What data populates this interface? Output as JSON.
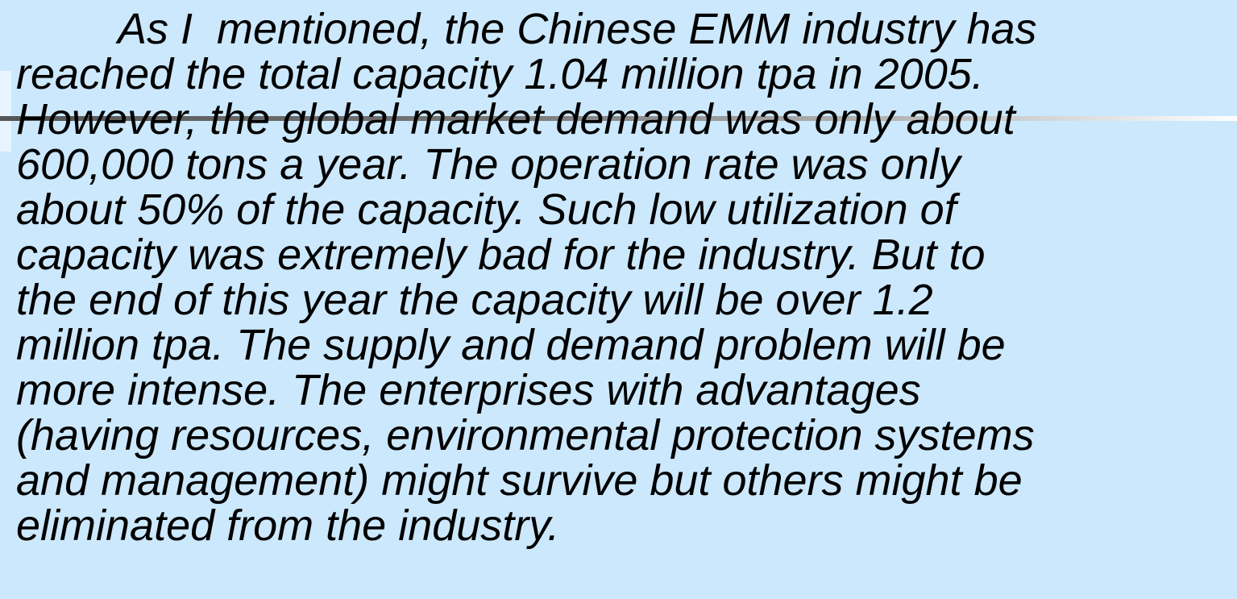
{
  "slide": {
    "lines": [
      "As I  mentioned, the Chinese EMM industry has",
      "reached the total capacity 1.04 million tpa in 2005.",
      "However, the global market demand was only about",
      "600,000 tons a year. The operation rate was only",
      "about 50% of the capacity. Such low utilization of",
      "capacity was extremely bad for the industry. But to",
      "the end of this year the capacity will be over 1.2",
      "million tpa. The supply and demand problem will be",
      "more intense. The enterprises with advantages",
      "(having resources, environmental protection systems",
      "and management) might survive but others might be",
      "eliminated from the industry."
    ]
  }
}
